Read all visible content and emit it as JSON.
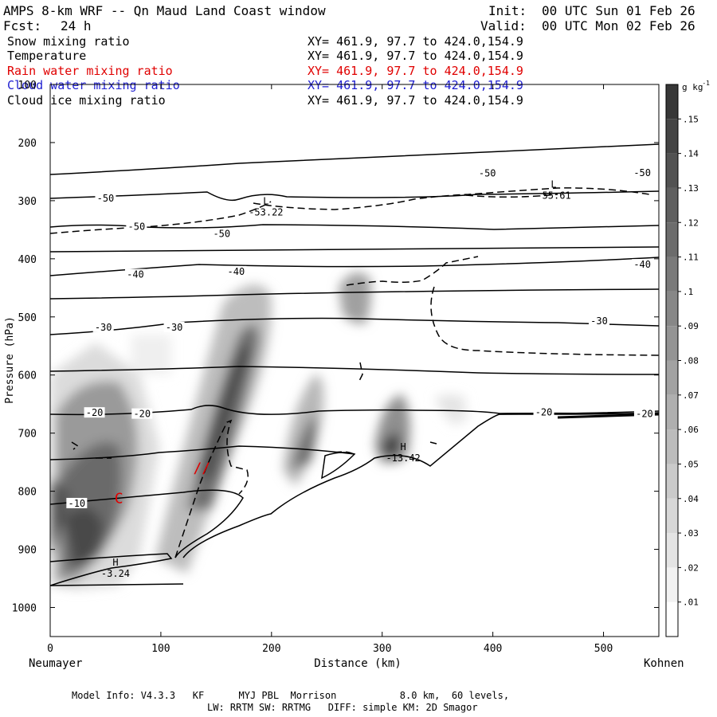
{
  "header": {
    "title": "AMPS 8-km WRF -- Qn Maud Land Coast window",
    "fcst_label": "Fcst:",
    "fcst_value": "24 h",
    "init_label": "Init:",
    "init_value": "00 UTC Sun 01 Feb 26",
    "valid_label": "Valid:",
    "valid_value": "00 UTC Mon 02 Feb 26"
  },
  "fields": [
    {
      "name": "Snow mixing ratio",
      "xy": "XY= 461.9, 97.7 to 424.0,154.9",
      "color": "#000000"
    },
    {
      "name": "Temperature",
      "xy": "XY= 461.9, 97.7 to 424.0,154.9",
      "color": "#000000"
    },
    {
      "name": "Rain water mixing ratio",
      "xy": "XY= 461.9, 97.7 to 424.0,154.9",
      "color": "#e00000"
    },
    {
      "name": "Cloud water mixing ratio",
      "xy": "XY= 461.9, 97.7 to 424.0,154.9",
      "color": "#2020d0"
    },
    {
      "name": "Cloud ice mixing ratio",
      "xy": "XY= 461.9, 97.7 to 424.0,154.9",
      "color": "#000000"
    }
  ],
  "chart_data": {
    "type": "contour",
    "xlabel": "Distance (km)",
    "ylabel": "Pressure (hPa)",
    "xlim": [
      0,
      550
    ],
    "ylim": [
      1050,
      100
    ],
    "x_ticks": [
      0,
      100,
      200,
      300,
      400,
      500
    ],
    "y_ticks": [
      100,
      200,
      300,
      400,
      500,
      600,
      700,
      800,
      900,
      1000
    ],
    "endpoint_left": "Neumayer",
    "endpoint_right": "Kohnen",
    "colorbar": {
      "units": "g kg",
      "units_sup": "-1",
      "ticks": [
        ".01",
        ".02",
        ".03",
        ".04",
        ".05",
        ".06",
        ".07",
        ".08",
        ".09",
        ".1",
        ".11",
        ".12",
        ".13",
        ".14",
        ".15"
      ]
    },
    "isotherm_labels": [
      {
        "text": "-50",
        "x": 50,
        "p": 296
      },
      {
        "text": "-50",
        "x": 78,
        "p": 345
      },
      {
        "text": "-50",
        "x": 155,
        "p": 357
      },
      {
        "text": "-50",
        "x": 395,
        "p": 253
      },
      {
        "text": "-50",
        "x": 535,
        "p": 252
      },
      {
        "text": "-40",
        "x": 77,
        "p": 427
      },
      {
        "text": "-40",
        "x": 168,
        "p": 422
      },
      {
        "text": "-40",
        "x": 535,
        "p": 410
      },
      {
        "text": "-30",
        "x": 48,
        "p": 518
      },
      {
        "text": "-30",
        "x": 112,
        "p": 518
      },
      {
        "text": "-30",
        "x": 496,
        "p": 507
      },
      {
        "text": "-20",
        "x": 40,
        "p": 665
      },
      {
        "text": "-20",
        "x": 83,
        "p": 667
      },
      {
        "text": "-20",
        "x": 446,
        "p": 664
      },
      {
        "text": "-20",
        "x": 537,
        "p": 667
      },
      {
        "text": "-10",
        "x": 24,
        "p": 821
      }
    ],
    "extrema": [
      {
        "type": "L",
        "value": "-53.22",
        "x": 195,
        "p": 309
      },
      {
        "type": "L",
        "value": "-55.61",
        "x": 455,
        "p": 280
      },
      {
        "type": "H",
        "value": "-13.42",
        "x": 319,
        "p": 732
      },
      {
        "type": "H",
        "value": "-3.24",
        "x": 59,
        "p": 931
      }
    ],
    "rain_markers": [
      {
        "text": "C",
        "x": 62,
        "p": 812
      },
      {
        "text": "//",
        "x": 137,
        "p": 760
      }
    ]
  },
  "footer": {
    "line1": "Model Info: V4.3.3   KF      MYJ PBL  Morrison           8.0 km,  60 levels,",
    "line2": "LW: RRTM SW: RRTMG   DIFF: simple KM: 2D Smagor"
  }
}
